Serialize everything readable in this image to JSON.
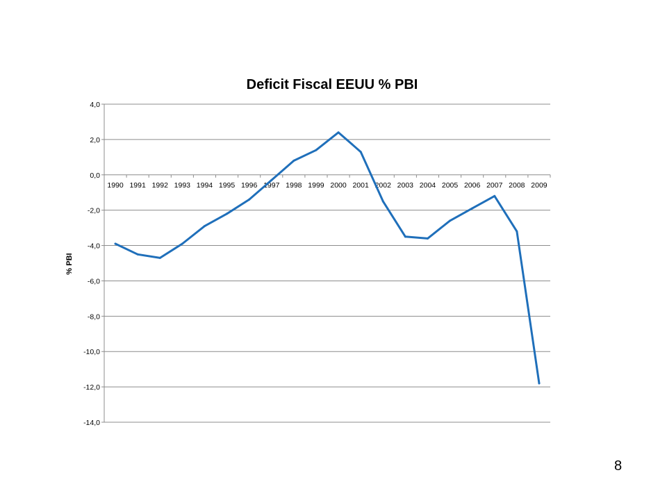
{
  "chart_data": {
    "type": "line",
    "title": "Deficit Fiscal EEUU % PBI",
    "xlabel": "",
    "ylabel": "% PBI",
    "ylim": [
      -14,
      4
    ],
    "ytick_step": 2,
    "y_tick_labels": [
      "4,0",
      "2,0",
      "0,0",
      "-2,0",
      "-4,0",
      "-6,0",
      "-8,0",
      "-10,0",
      "-12,0",
      "-14,0"
    ],
    "grid": true,
    "legend": "none",
    "x": [
      "1990",
      "1991",
      "1992",
      "1993",
      "1994",
      "1995",
      "1996",
      "1997",
      "1998",
      "1999",
      "2000",
      "2001",
      "2002",
      "2003",
      "2004",
      "2005",
      "2006",
      "2007",
      "2008",
      "2009"
    ],
    "series": [
      {
        "values": [
          -3.9,
          -4.5,
          -4.7,
          -3.9,
          -2.9,
          -2.2,
          -1.4,
          -0.3,
          0.8,
          1.4,
          2.4,
          1.3,
          -1.5,
          -3.5,
          -3.6,
          -2.6,
          -1.9,
          -1.2,
          -3.2,
          -11.8
        ],
        "color": "#1f6fba"
      }
    ]
  },
  "page": {
    "number": "8"
  }
}
